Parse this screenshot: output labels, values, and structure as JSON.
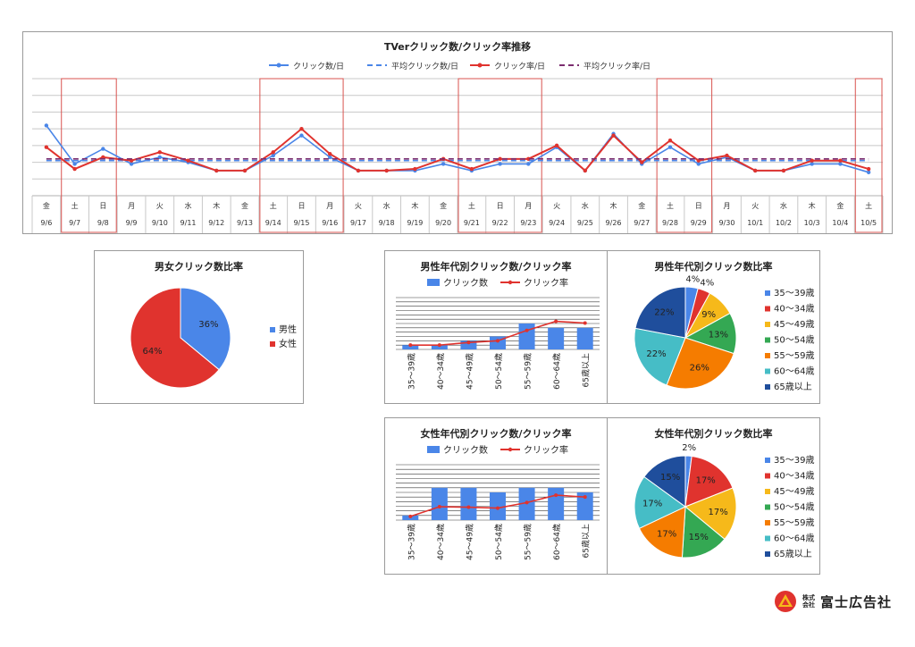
{
  "colors": {
    "blue": "#4a86e8",
    "red": "#e0332e",
    "navy": "#1f4e9c",
    "yellow": "#f6b91a",
    "green": "#34a853",
    "orange": "#f57c00",
    "teal": "#46bdc6",
    "purple": "#7b2d6f",
    "highlight": "#d9534f"
  },
  "logo": {
    "corp": "株式\n会社",
    "name": "富士広告社"
  },
  "chart_data": [
    {
      "id": "daily",
      "type": "line",
      "title": "TVerクリック数/クリック率推移",
      "legend": [
        "クリック数/日",
        "平均クリック数/日",
        "クリック率/日",
        "平均クリック率/日"
      ],
      "categories": [
        "9/6",
        "9/7",
        "9/8",
        "9/9",
        "9/10",
        "9/11",
        "9/12",
        "9/13",
        "9/14",
        "9/15",
        "9/16",
        "9/17",
        "9/18",
        "9/19",
        "9/20",
        "9/21",
        "9/22",
        "9/23",
        "9/24",
        "9/25",
        "9/26",
        "9/27",
        "9/28",
        "9/29",
        "9/30",
        "10/1",
        "10/2",
        "10/3",
        "10/4",
        "10/5"
      ],
      "weekdays": [
        "金",
        "土",
        "日",
        "月",
        "火",
        "水",
        "木",
        "金",
        "土",
        "日",
        "月",
        "火",
        "水",
        "木",
        "金",
        "土",
        "日",
        "月",
        "火",
        "水",
        "木",
        "金",
        "土",
        "日",
        "月",
        "火",
        "水",
        "木",
        "金",
        "土"
      ],
      "highlight_weekends": [
        [
          "9/7",
          "9/8"
        ],
        [
          "9/14",
          "9/16"
        ],
        [
          "9/21",
          "9/23"
        ],
        [
          "9/28",
          "9/29"
        ],
        [
          "10/5",
          "10/5"
        ]
      ],
      "series": [
        {
          "name": "クリック数/日",
          "values": [
            4.2,
            1.9,
            2.8,
            1.9,
            2.3,
            2.0,
            1.5,
            1.5,
            2.4,
            3.6,
            2.3,
            1.5,
            1.5,
            1.5,
            1.9,
            1.5,
            1.9,
            1.9,
            2.9,
            1.5,
            3.7,
            1.9,
            2.9,
            1.9,
            2.3,
            1.5,
            1.5,
            1.9,
            1.9,
            1.4
          ]
        },
        {
          "name": "平均クリック数/日",
          "values": [
            2.1,
            2.1,
            2.1,
            2.1,
            2.1,
            2.1,
            2.1,
            2.1,
            2.1,
            2.1,
            2.1,
            2.1,
            2.1,
            2.1,
            2.1,
            2.1,
            2.1,
            2.1,
            2.1,
            2.1,
            2.1,
            2.1,
            2.1,
            2.1,
            2.1,
            2.1,
            2.1,
            2.1,
            2.1,
            2.1
          ]
        },
        {
          "name": "クリック率/日",
          "values": [
            2.9,
            1.6,
            2.3,
            2.1,
            2.6,
            2.1,
            1.5,
            1.5,
            2.6,
            4.0,
            2.5,
            1.5,
            1.5,
            1.6,
            2.2,
            1.6,
            2.2,
            2.2,
            3.0,
            1.5,
            3.6,
            2.0,
            3.3,
            2.1,
            2.4,
            1.5,
            1.5,
            2.1,
            2.1,
            1.6
          ]
        },
        {
          "name": "平均クリック率/日",
          "values": [
            2.2,
            2.2,
            2.2,
            2.2,
            2.2,
            2.2,
            2.2,
            2.2,
            2.2,
            2.2,
            2.2,
            2.2,
            2.2,
            2.2,
            2.2,
            2.2,
            2.2,
            2.2,
            2.2,
            2.2,
            2.2,
            2.2,
            2.2,
            2.2,
            2.2,
            2.2,
            2.2,
            2.2,
            2.2,
            2.2
          ]
        }
      ],
      "ylim": [
        0,
        7
      ]
    },
    {
      "id": "gender",
      "type": "pie",
      "title": "男女クリック数比率",
      "categories": [
        "男性",
        "女性"
      ],
      "values": [
        36,
        64
      ],
      "labels": [
        "36%",
        "64%"
      ],
      "legend_position": "right"
    },
    {
      "id": "male_age",
      "type": "bar",
      "title": "男性年代別クリック数/クリック率",
      "legend": [
        "クリック数",
        "クリック率"
      ],
      "categories": [
        "35～39歳",
        "40～34歳",
        "45～49歳",
        "50～54歳",
        "55～59歳",
        "60～64歳",
        "65歳以上"
      ],
      "series": [
        {
          "name": "クリック数",
          "values": [
            1,
            1,
            2,
            3,
            6,
            5,
            5
          ]
        },
        {
          "name": "クリック率",
          "values": [
            1.0,
            1.0,
            1.6,
            2.0,
            4.4,
            6.5,
            6.1
          ]
        }
      ],
      "ylim": [
        0,
        12
      ]
    },
    {
      "id": "male_age_ratio",
      "type": "pie",
      "title": "男性年代別クリック数比率",
      "categories": [
        "35～39歳",
        "40～34歳",
        "45～49歳",
        "50～54歳",
        "55～59歳",
        "60～64歳",
        "65歳以上"
      ],
      "values": [
        4,
        4,
        9,
        13,
        26,
        22,
        22
      ],
      "labels": [
        "4%",
        "4%",
        "9%",
        "13%",
        "26%",
        "22%",
        "22%"
      ],
      "legend_position": "right"
    },
    {
      "id": "female_age",
      "type": "bar",
      "title": "女性年代別クリック数/クリック率",
      "legend": [
        "クリック数",
        "クリック率"
      ],
      "categories": [
        "35～39歳",
        "40～34歳",
        "45～49歳",
        "50～54歳",
        "55～59歳",
        "60～64歳",
        "65歳以上"
      ],
      "series": [
        {
          "name": "クリック数",
          "values": [
            1,
            7,
            7,
            6,
            7,
            7,
            6
          ]
        },
        {
          "name": "クリック率",
          "values": [
            0.8,
            2.9,
            2.8,
            2.6,
            3.8,
            5.4,
            5.0
          ]
        }
      ],
      "ylim": [
        0,
        12
      ]
    },
    {
      "id": "female_age_ratio",
      "type": "pie",
      "title": "女性年代別クリック数比率",
      "categories": [
        "35～39歳",
        "40～34歳",
        "45～49歳",
        "50～54歳",
        "55～59歳",
        "60～64歳",
        "65歳以上"
      ],
      "values": [
        2,
        17,
        17,
        15,
        17,
        17,
        15
      ],
      "labels": [
        "2%",
        "17%",
        "17%",
        "15%",
        "17%",
        "17%",
        "15%"
      ],
      "legend_position": "right"
    }
  ]
}
